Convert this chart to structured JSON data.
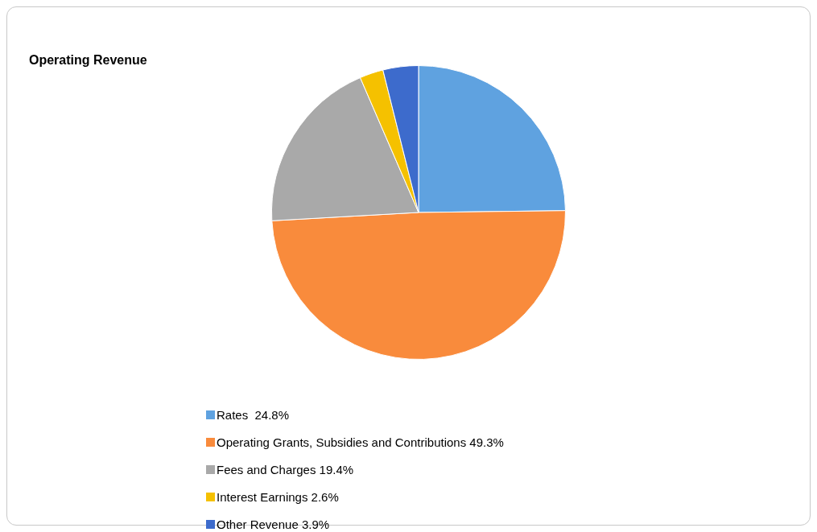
{
  "chart_data": {
    "type": "pie",
    "title": "Operating Revenue",
    "categories": [
      "Rates ",
      "Operating Grants, Subsidies and Contributions",
      "Fees and Charges",
      "Interest Earnings",
      "Other Revenue"
    ],
    "values": [
      24.8,
      49.3,
      19.4,
      2.6,
      3.9
    ],
    "value_labels": [
      "24.8%",
      "49.3%",
      "19.4%",
      "2.6%",
      "3.9%"
    ],
    "colors": [
      "#5fa2e0",
      "#f98b3c",
      "#a9a9a9",
      "#f5c100",
      "#3d6bcc"
    ],
    "legend": "bottom"
  }
}
